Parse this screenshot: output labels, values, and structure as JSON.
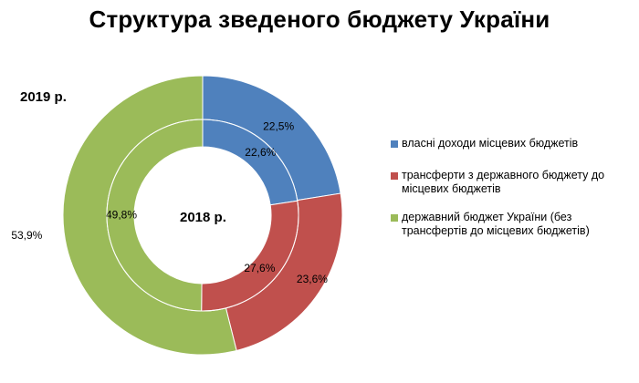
{
  "chart_data": {
    "type": "donut",
    "title": "Структура зведеного бюджету України",
    "rings": [
      {
        "name": "2019 р.",
        "position": "outer",
        "values": [
          22.5,
          23.6,
          53.9
        ],
        "labels": [
          "22,5%",
          "23,6%",
          "53,9%"
        ]
      },
      {
        "name": "2018 р.",
        "position": "inner",
        "values": [
          22.6,
          27.6,
          49.8
        ],
        "labels": [
          "22,6%",
          "27,6%",
          "49,8%"
        ]
      }
    ],
    "categories": [
      "власні доходи місцевих бюджетів",
      "трансферти з державного бюджету до місцевих бюджетів",
      "державний бюджет України (без трансфертів до місцевих бюджетів)"
    ],
    "colors": [
      "#4f81bd",
      "#c0504d",
      "#9bbb59"
    ],
    "legend_position": "right"
  }
}
